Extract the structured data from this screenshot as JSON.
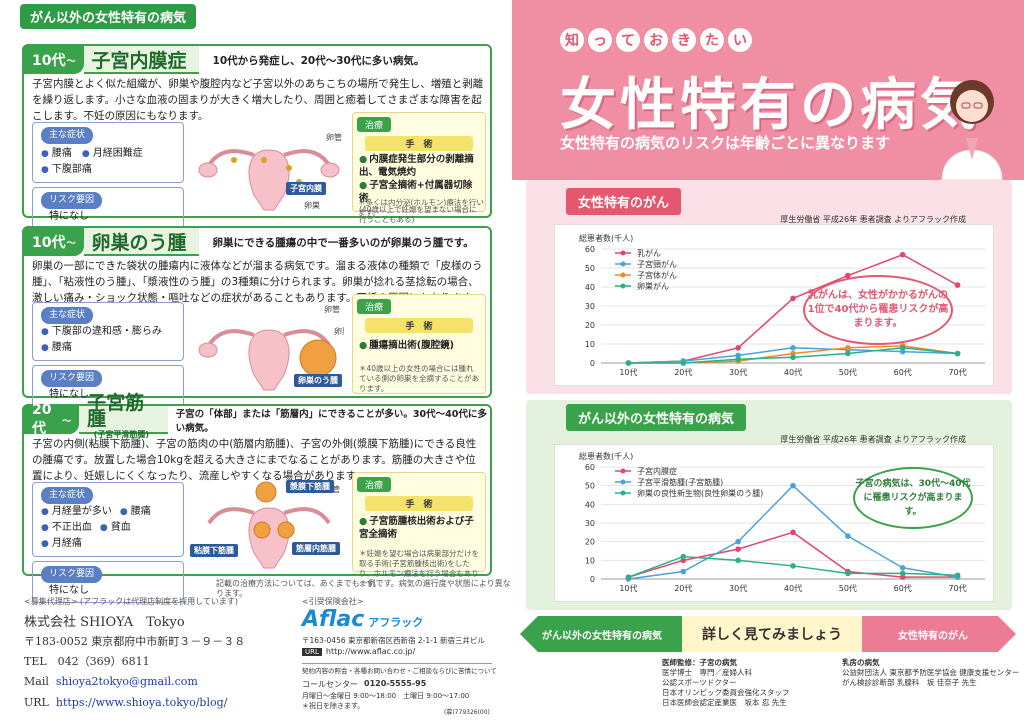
{
  "left": {
    "top_tag": "がん以外の女性特有の病気",
    "sections": [
      {
        "age": "10代",
        "name": "子宮内膜症",
        "desc": "10代から発症し、20代〜30代に多い病気。",
        "body": "子宮内膜とよく似た組織が、卵巣や腹腔内など子宮以外のあちこちの場所で発生し、増殖と剥離を繰り返します。小さな血液の固まりが大きく増大したり、周囲と癒着してさまざまな障害を起こします。不妊の原因にもなります。",
        "symptoms_label": "主な症状",
        "symptoms": [
          "腰痛",
          "月経困難症",
          "下腹部痛"
        ],
        "risk_label": "リスク要因",
        "risk": "特になし",
        "treat_label": "治療",
        "surgery_label": "手　術",
        "treatments": [
          "内膜症発生部分の剥離摘出、電気焼灼",
          "子宮全摘術+付属器切除術"
        ],
        "treat_sub": "(40歳以上で妊娠を望まない場合に行うこともある)",
        "note": "＊多くは内分泌(ホルモン)療法を行います。",
        "labels": [
          "卵管",
          "卵巣",
          "子宮内膜"
        ]
      },
      {
        "age": "10代",
        "name": "卵巣のう腫",
        "desc": "卵巣にできる腫瘍の中で一番多いのが卵巣のう腫です。",
        "body": "卵巣の一部にできた袋状の腫瘍内に液体などが溜まる病気です。溜まる液体の種類で「皮様のう腫」、「粘液性のう腫」、「漿液性のう腫」の3種類に分けられます。卵巣が捻れる茎捻転の場合、激しい痛み・ショック状態・嘔吐などの症状があることもあります。不妊の原因にもなります。",
        "symptoms_label": "主な症状",
        "symptoms": [
          "下腹部の違和感・膨らみ",
          "腰痛"
        ],
        "risk_label": "リスク要因",
        "risk": "特になし",
        "treat_label": "治療",
        "surgery_label": "手　術",
        "treatments": [
          "腫瘍摘出術(腹腔鏡)"
        ],
        "note": "＊40歳以上の女性の場合には腫れている側の卵巣を全摘することがあります。",
        "labels": [
          "卵管",
          "卵巣",
          "卵巣のう腫"
        ]
      },
      {
        "age": "20代",
        "name": "子宮筋腫",
        "name_sub": "(子宮平滑筋腫)",
        "desc": "子宮の「体部」または「筋層内」にできることが多い。30代〜40代に多い病気。",
        "body": "子宮の内側(粘膜下筋腫)、子宮の筋肉の中(筋層内筋腫)、子宮の外側(漿膜下筋腫)にできる良性の腫瘍です。放置した場合10kgを超える大きさにまでなることがあります。筋腫の大きさや位置により、妊娠しにくくなったり、流産しやすくなる場合があります。",
        "symptoms_label": "主な症状",
        "symptoms": [
          "月経量が多い",
          "腰痛",
          "不正出血",
          "貧血",
          "月経痛"
        ],
        "risk_label": "リスク要因",
        "risk": "特になし",
        "treat_label": "治療",
        "surgery_label": "手　術",
        "treatments": [
          "子宮筋腫核出術および子宮全摘術"
        ],
        "note": "＊妊娠を望む場合は病巣部分だけを取る手術(子宮筋腫核出術)をしたり、ホルモン療法を行う場合もあります。",
        "labels": [
          "漿膜下筋腫",
          "粘膜下筋腫",
          "筋層内筋腫",
          "卵管"
        ]
      }
    ],
    "disclaimer": "記載の治療方法については、あくまでも一例です。病気の進行度や状態により異なります。",
    "agency_label": "<募集代理店>",
    "agency_note": "(アフラックは代理店制度を採用しています)",
    "company": "株式会社 SHIOYA　Tokyo",
    "address": "〒183-0052 東京都府中市新町３－９－３８",
    "tel": "TEL　042（369）6811",
    "mail_label": "Mail",
    "mail": "shioya2tokyo@gmail.com",
    "url_label": "URL",
    "url": "https://www.shioya.tokyo/blog/",
    "insurer_label": "<引受保険会社>",
    "aflac_logo": "Aflac",
    "aflac_kana": "アフラック",
    "aflac_address": "〒163-0456 東京都新宿区西新宿 2-1-1 新宿三井ビル",
    "aflac_url_tag": "URL",
    "aflac_url": "http://www.aflac.co.jp/",
    "contact_title": "契約内容の照会・各種お問い合わせ・ご相談ならびに苦情について",
    "call_center": "コールセンター",
    "phone": "0120-5555-95",
    "hours1": "月曜日〜金曜日 9:00〜18:00　土曜日 9:00〜17:00",
    "hours2": "＊祝日を除きます。",
    "code": "(募)779326(00)"
  },
  "right": {
    "kicker": [
      "知",
      "っ",
      "て",
      "お",
      "き",
      "た",
      "い"
    ],
    "title": "女性特有の病気",
    "subtitle": "女性特有の病気のリスクは年齢ごとに異なります",
    "panel1_tag": "女性特有のがん",
    "panel2_tag": "がん以外の女性特有の病気",
    "source": "厚生労働省 平成26年 患者調査 よりアフラック作成",
    "bubble1": "乳がんは、女性がかかるがんの1位で40代から罹患リスクが高まります。",
    "bubble2": "子宮の病気は、30代〜40代に罹患リスクが高まります。",
    "nav_left": "がん以外の女性特有の病気",
    "nav_center": "詳しく見てみましょう",
    "nav_right": "女性特有のがん",
    "credit1_title": "医師監修：子宮の病気",
    "credit1": [
      "医学博士　専門／産婦人科",
      "公認スポーツドクター",
      "日本オリンピック委員会強化スタッフ",
      "日本医師会認定産業医　坂本 忍 先生"
    ],
    "credit2_title": "乳房の病気",
    "credit2": [
      "公益財団法人 東京都予防医学協会 健康支援センター",
      "がん検診診断部 乳腺科　坂 佳奈子 先生"
    ]
  },
  "chart_data": [
    {
      "type": "line",
      "ylabel": "総患者数(千人)",
      "x": [
        "10代",
        "20代",
        "30代",
        "40代",
        "50代",
        "60代",
        "70代"
      ],
      "ylim": [
        0,
        60
      ],
      "yticks": [
        0,
        10,
        20,
        30,
        40,
        50,
        60
      ],
      "series": [
        {
          "name": "乳がん",
          "color": "#e4456a",
          "values": [
            0,
            1,
            8,
            34,
            46,
            57,
            41
          ]
        },
        {
          "name": "子宮頸がん",
          "color": "#4aa3d8",
          "values": [
            0,
            1,
            4,
            8,
            7,
            6,
            5
          ]
        },
        {
          "name": "子宮体がん",
          "color": "#ee8a2a",
          "values": [
            0,
            0,
            1,
            5,
            8,
            9,
            5
          ]
        },
        {
          "name": "卵巣がん",
          "color": "#2bb08a",
          "values": [
            0,
            0,
            2,
            3,
            5,
            8,
            5
          ]
        }
      ]
    },
    {
      "type": "line",
      "ylabel": "総患者数(千人)",
      "x": [
        "10代",
        "20代",
        "30代",
        "40代",
        "50代",
        "60代",
        "70代"
      ],
      "ylim": [
        0,
        60
      ],
      "yticks": [
        0,
        10,
        20,
        30,
        40,
        50,
        60
      ],
      "series": [
        {
          "name": "子宮内膜症",
          "color": "#e4456a",
          "values": [
            1,
            10,
            16,
            25,
            4,
            1,
            1
          ]
        },
        {
          "name": "子宮平滑筋腫(子宮筋腫)",
          "color": "#4aa3d8",
          "values": [
            0,
            4,
            20,
            50,
            23,
            6,
            1
          ]
        },
        {
          "name": "卵巣の良性新生物(良性卵巣のう腫)",
          "color": "#2bb08a",
          "values": [
            1,
            12,
            10,
            7,
            3,
            3,
            2
          ]
        }
      ]
    }
  ]
}
